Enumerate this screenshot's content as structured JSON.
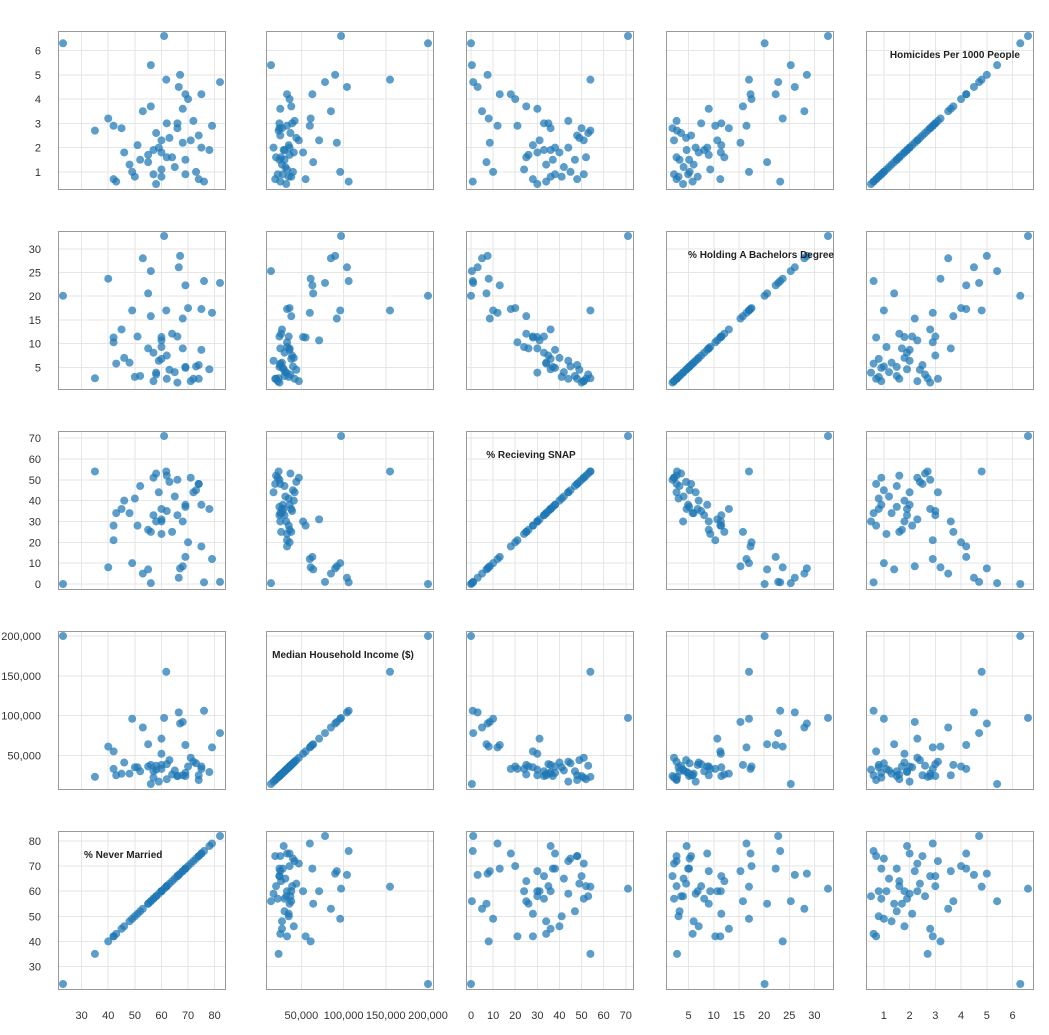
{
  "chart_data": {
    "type": "scatter-matrix",
    "variables": [
      {
        "key": "homicides",
        "label": "Homicides Per 1000 People",
        "range": [
          0.5,
          6.6
        ],
        "ticks": [
          1,
          2,
          3,
          4,
          5,
          6
        ],
        "tick_labels": [
          "1",
          "2",
          "3",
          "4",
          "5",
          "6"
        ]
      },
      {
        "key": "bachelors",
        "label": "% Holding A Bachelors Degree",
        "range": [
          1.5,
          32.7
        ],
        "ticks": [
          5,
          10,
          15,
          20,
          25,
          30
        ],
        "tick_labels": [
          "5",
          "10",
          "15",
          "20",
          "25",
          "30"
        ]
      },
      {
        "key": "snap",
        "label": "% Recieving SNAP",
        "range": [
          0,
          71
        ],
        "ticks": [
          0,
          10,
          20,
          30,
          40,
          50,
          60,
          70
        ],
        "tick_labels": [
          "0",
          "10",
          "20",
          "30",
          "40",
          "50",
          "60",
          "70"
        ]
      },
      {
        "key": "income",
        "label": "Median Household Income ($)",
        "range": [
          14000,
          200000
        ],
        "ticks": [
          50000,
          100000,
          150000,
          200000
        ],
        "tick_labels": [
          "50,000",
          "100,000",
          "150,000",
          "200,000"
        ]
      },
      {
        "key": "nevermarried",
        "label": "% Never Married",
        "range": [
          23,
          82
        ],
        "ticks": [
          30,
          40,
          50,
          60,
          70,
          80
        ],
        "tick_labels": [
          "30",
          "40",
          "50",
          "60",
          "70",
          "80"
        ]
      }
    ],
    "grid": true,
    "point_color": "#1f77b4",
    "point_opacity": 0.72,
    "rows": [
      [
        6.3,
        20.1,
        0.0,
        200000,
        23.0
      ],
      [
        6.6,
        32.7,
        71.0,
        97000,
        61.0
      ],
      [
        5.4,
        25.3,
        0.4,
        14000,
        56.0
      ],
      [
        5.0,
        28.5,
        7.5,
        90000,
        67.0
      ],
      [
        4.8,
        17.0,
        54.0,
        155000,
        61.8
      ],
      [
        4.7,
        22.8,
        1.0,
        78000,
        82.0
      ],
      [
        4.5,
        26.1,
        3.0,
        104000,
        66.5
      ],
      [
        4.2,
        22.3,
        13.0,
        63000,
        69.0
      ],
      [
        4.2,
        17.3,
        18.0,
        33000,
        75.0
      ],
      [
        4.0,
        17.5,
        20.0,
        36000,
        70.0
      ],
      [
        3.7,
        15.8,
        25.0,
        38000,
        56.0
      ],
      [
        3.6,
        9.0,
        30.0,
        25000,
        68.0
      ],
      [
        3.5,
        28.0,
        5.0,
        85000,
        53.0
      ],
      [
        3.2,
        23.7,
        8.0,
        61000,
        40.0
      ],
      [
        3.1,
        2.6,
        44.0,
        42000,
        72.0
      ],
      [
        3.0,
        11.5,
        33.0,
        24000,
        66.0
      ],
      [
        3.0,
        7.5,
        35.0,
        39000,
        62.0
      ],
      [
        2.9,
        10.3,
        21.0,
        33000,
        42.0
      ],
      [
        2.9,
        16.5,
        12.0,
        60000,
        79.0
      ],
      [
        2.8,
        1.8,
        50.0,
        24000,
        66.0
      ],
      [
        2.8,
        13.0,
        36.0,
        27000,
        45.0
      ],
      [
        2.7,
        2.7,
        54.0,
        23000,
        35.0
      ],
      [
        2.6,
        3.5,
        53.0,
        37000,
        58.0
      ],
      [
        2.5,
        5.5,
        48.0,
        25000,
        74.0
      ],
      [
        2.4,
        4.5,
        49.0,
        44000,
        63.0
      ],
      [
        2.3,
        2.1,
        51.0,
        47000,
        71.0
      ],
      [
        2.3,
        10.7,
        31.0,
        71000,
        60.0
      ],
      [
        2.2,
        15.3,
        8.5,
        92000,
        68.0
      ],
      [
        2.1,
        11.5,
        28.0,
        35000,
        51.0
      ],
      [
        2.0,
        6.4,
        44.0,
        17000,
        59.0
      ],
      [
        2.0,
        8.7,
        38.0,
        36000,
        75.0
      ],
      [
        1.9,
        8.1,
        33.0,
        30000,
        57.0
      ],
      [
        1.9,
        4.6,
        36.0,
        29000,
        78.0
      ],
      [
        1.8,
        11.4,
        30.0,
        52000,
        60.0
      ],
      [
        1.8,
        7.0,
        40.0,
        41000,
        46.0
      ],
      [
        1.7,
        9.0,
        26.0,
        36000,
        55.0
      ],
      [
        1.6,
        12.1,
        25.0,
        26000,
        64.0
      ],
      [
        1.6,
        2.6,
        52.0,
        20000,
        62.0
      ],
      [
        1.5,
        5.1,
        37.0,
        24000,
        69.0
      ],
      [
        1.5,
        3.2,
        47.0,
        30000,
        52.0
      ],
      [
        1.4,
        20.6,
        7.0,
        64000,
        55.0
      ],
      [
        1.3,
        6.0,
        34.0,
        27000,
        48.0
      ],
      [
        1.2,
        4.0,
        42.0,
        31000,
        65.0
      ],
      [
        1.1,
        9.3,
        24.0,
        33000,
        60.0
      ],
      [
        1.0,
        5.2,
        45.0,
        40000,
        73.0
      ],
      [
        1.0,
        17.0,
        10.0,
        96000,
        49.0
      ],
      [
        0.9,
        2.1,
        51.0,
        22000,
        57.0
      ],
      [
        0.9,
        4.9,
        38.0,
        28000,
        69.0
      ],
      [
        0.8,
        6.8,
        36.0,
        38000,
        60.0
      ],
      [
        0.8,
        3.0,
        41.0,
        35000,
        50.0
      ],
      [
        0.7,
        11.3,
        28.0,
        55000,
        42.0
      ],
      [
        0.7,
        2.6,
        48.0,
        19000,
        74.0
      ],
      [
        0.6,
        5.8,
        34.0,
        25000,
        43.0
      ],
      [
        0.6,
        23.2,
        0.8,
        106000,
        76.0
      ],
      [
        0.5,
        3.9,
        30.0,
        32000,
        58.0
      ]
    ]
  }
}
